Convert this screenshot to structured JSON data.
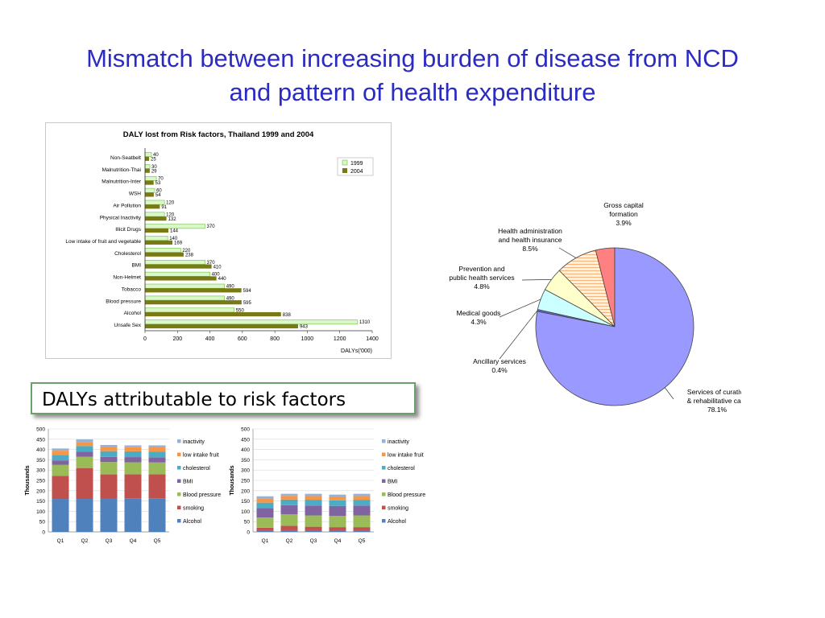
{
  "slide": {
    "title_line1": "Mismatch between increasing burden of disease from NCD",
    "title_line2": "and pattern of health expenditure",
    "callout": "DALYs attributable to risk factors"
  },
  "colors": {
    "title": "#2b2bc4",
    "bar_1999": "#d9f7c8",
    "bar_2004": "#7a7a14",
    "stack_alcohol": "#4f81bd",
    "stack_smoking": "#c0504d",
    "stack_bp": "#9bbb59",
    "stack_bmi": "#8064a2",
    "stack_chol": "#4bacc6",
    "stack_lowfruit": "#f79646",
    "stack_inactivity": "#95b3d7"
  },
  "chart_data": [
    {
      "type": "bar",
      "orientation": "horizontal",
      "title": "DALY lost from Risk factors, Thailand 1999 and 2004",
      "xlabel": "DALYs('000)",
      "xlim": [
        0,
        1400
      ],
      "xticks": [
        0,
        200,
        400,
        600,
        800,
        1000,
        1200,
        1400
      ],
      "legend_position": "top-right",
      "categories": [
        "Non-Seatbelt",
        "Malnutrition-Thai",
        "Malnutrition-Inter",
        "WSH",
        "Air Pollution",
        "Physical Inactivity",
        "Illicit Drugs",
        "Low intake of fruit and vegetable",
        "Cholesterol",
        "BMI",
        "Non-Helmet",
        "Tobacco",
        "Blood pressure",
        "Alcohol",
        "Unsafe Sex"
      ],
      "series": [
        {
          "name": "1999",
          "values": [
            40,
            30,
            70,
            60,
            120,
            120,
            370,
            140,
            220,
            370,
            400,
            490,
            490,
            550,
            1310
          ]
        },
        {
          "name": "2004",
          "values": [
            25,
            29,
            53,
            54,
            91,
            132,
            144,
            169,
            238,
            410,
            440,
            594,
            595,
            838,
            943
          ]
        }
      ]
    },
    {
      "type": "pie",
      "slices": [
        {
          "label_line1": "Gross capital",
          "label_line2": "formation",
          "value": 3.9,
          "pct": "3.9%",
          "color": "#ff8080"
        },
        {
          "label_line1": "Health administration",
          "label_line2": "and health insurance",
          "value": 8.5,
          "pct": "8.5%",
          "color": "#fff0e0"
        },
        {
          "label_line1": "Prevention and",
          "label_line2": "public health services",
          "value": 4.8,
          "pct": "4.8%",
          "color": "#ffffcc"
        },
        {
          "label_line1": "Medical goods",
          "label_line2": "",
          "value": 4.3,
          "pct": "4.3%",
          "color": "#ccffff"
        },
        {
          "label_line1": "Ancillary services",
          "label_line2": "",
          "value": 0.4,
          "pct": "0.4%",
          "color": "#6666cc"
        },
        {
          "label_line1": "Services of curative",
          "label_line2": "& rehabilitative care",
          "value": 78.1,
          "pct": "78.1%",
          "color": "#9999ff"
        }
      ]
    },
    {
      "type": "bar",
      "stacked": true,
      "ylabel": "Thousands",
      "ylim": [
        0,
        500
      ],
      "yticks": [
        0,
        50,
        100,
        150,
        200,
        250,
        300,
        350,
        400,
        450,
        500
      ],
      "categories": [
        "Q1",
        "Q2",
        "Q3",
        "Q4",
        "Q5"
      ],
      "legend_position": "right",
      "series": [
        {
          "name": "Alcohol",
          "values": [
            160,
            160,
            162,
            163,
            163
          ]
        },
        {
          "name": "smoking",
          "values": [
            112,
            150,
            117,
            117,
            117
          ]
        },
        {
          "name": "Blood pressure",
          "values": [
            53,
            55,
            60,
            58,
            57
          ]
        },
        {
          "name": "BMI",
          "values": [
            22,
            25,
            25,
            25,
            25
          ]
        },
        {
          "name": "cholesterol",
          "values": [
            27,
            27,
            28,
            28,
            28
          ]
        },
        {
          "name": "low intake fruit",
          "values": [
            20,
            20,
            20,
            20,
            20
          ]
        },
        {
          "name": "inactivity",
          "values": [
            11,
            12,
            10,
            9,
            10
          ]
        }
      ]
    },
    {
      "type": "bar",
      "stacked": true,
      "ylabel": "Thousands",
      "ylim": [
        0,
        500
      ],
      "yticks": [
        0,
        50,
        100,
        150,
        200,
        250,
        300,
        350,
        400,
        450,
        500
      ],
      "categories": [
        "Q1",
        "Q2",
        "Q3",
        "Q4",
        "Q5"
      ],
      "legend_position": "right",
      "series": [
        {
          "name": "Alcohol",
          "values": [
            8,
            8,
            8,
            8,
            8
          ]
        },
        {
          "name": "smoking",
          "values": [
            12,
            22,
            17,
            15,
            15
          ]
        },
        {
          "name": "Blood pressure",
          "values": [
            50,
            55,
            55,
            55,
            57
          ]
        },
        {
          "name": "BMI",
          "values": [
            45,
            45,
            48,
            48,
            48
          ]
        },
        {
          "name": "cholesterol",
          "values": [
            27,
            27,
            28,
            27,
            28
          ]
        },
        {
          "name": "low intake fruit",
          "values": [
            18,
            18,
            18,
            17,
            18
          ]
        },
        {
          "name": "inactivity",
          "values": [
            13,
            10,
            11,
            11,
            11
          ]
        }
      ]
    }
  ]
}
